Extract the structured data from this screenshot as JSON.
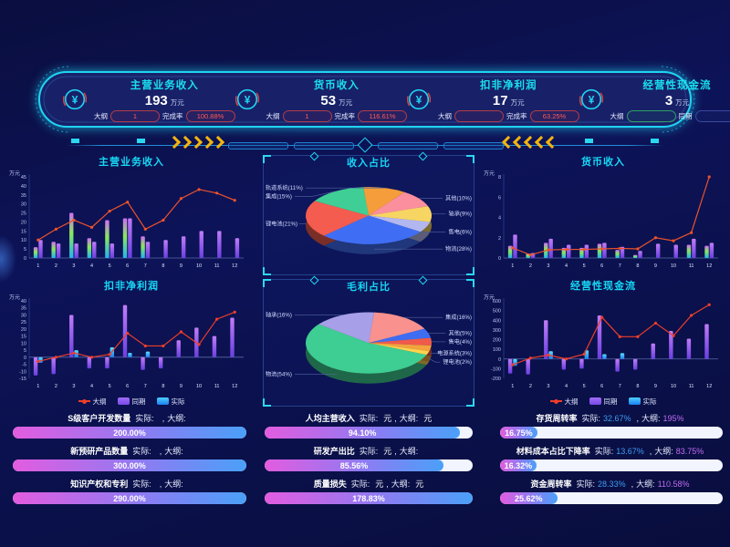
{
  "header": {
    "kpis": [
      {
        "title": "主营业务收入",
        "value": "193",
        "unit": "万元",
        "pills": [
          {
            "label": "大纲",
            "value": "1"
          },
          {
            "label": "完成率",
            "value": "100.88%"
          }
        ]
      },
      {
        "title": "货币收入",
        "value": "53",
        "unit": "万元",
        "pills": [
          {
            "label": "大纲",
            "value": "1"
          },
          {
            "label": "完成率",
            "value": "116.61%"
          }
        ]
      },
      {
        "title": "扣非净利润",
        "value": "17",
        "unit": "万元",
        "pills": [
          {
            "label": "大纲",
            "value": ""
          },
          {
            "label": "完成率",
            "value": "63.25%"
          }
        ]
      },
      {
        "title": "经营性现金流",
        "value": "3",
        "unit": "万元",
        "pills": [
          {
            "label": "大纲",
            "value": ""
          },
          {
            "label": "同期",
            "value": ""
          }
        ]
      }
    ]
  },
  "legend": {
    "items": [
      {
        "label": "大纲",
        "type": "line",
        "color": "#ee3e2a"
      },
      {
        "label": "同期",
        "type": "rect",
        "color": "#9257f0"
      },
      {
        "label": "实际",
        "type": "rect",
        "color": "#2aa8f0"
      }
    ]
  },
  "chart_data": [
    {
      "type": "combo",
      "title": "主营业务收入",
      "unit": "万元",
      "ylim": [
        0,
        45
      ],
      "ystep": 5,
      "categories": [
        "1",
        "2",
        "3",
        "4",
        "5",
        "6",
        "7",
        "8",
        "9",
        "10",
        "11",
        "12"
      ],
      "bars": [
        {
          "name": "实际",
          "palette": "rainbow",
          "values": [
            6,
            9,
            25,
            11,
            21,
            22,
            12,
            0,
            0,
            0,
            0,
            0
          ]
        },
        {
          "name": "同期",
          "palette": "purple",
          "values": [
            10,
            8,
            8,
            9,
            8,
            22,
            9,
            10,
            12,
            15,
            15,
            11
          ]
        }
      ],
      "line": {
        "name": "大纲",
        "color": "#ec522b",
        "values": [
          10,
          16,
          21,
          17,
          26,
          31,
          16,
          21,
          33,
          38,
          36,
          32
        ]
      }
    },
    {
      "type": "pie",
      "title": "收入占比",
      "start": -95,
      "slices": [
        {
          "label": "轨道系统",
          "pct": 11,
          "color": "#f49d3a",
          "side": "left"
        },
        {
          "label": "其他",
          "pct": 10,
          "color": "#fb8f9d",
          "side": "right"
        },
        {
          "label": "轴承",
          "pct": 9,
          "color": "#f7d562",
          "side": "right"
        },
        {
          "label": "售电",
          "pct": 6,
          "color": "#b3b7f0",
          "side": "right"
        },
        {
          "label": "物流",
          "pct": 28,
          "color": "#3f6ef5",
          "side": "right"
        },
        {
          "label": "锂电池",
          "pct": 21,
          "color": "#f35c4f",
          "side": "left"
        },
        {
          "label": "集成",
          "pct": 15,
          "color": "#3fcf96",
          "side": "left"
        }
      ]
    },
    {
      "type": "combo",
      "title": "货币收入",
      "unit": "万元",
      "ylim": [
        0,
        8
      ],
      "ystep": 2,
      "categories": [
        "1",
        "2",
        "3",
        "4",
        "5",
        "6",
        "7",
        "8",
        "9",
        "10",
        "11",
        "12"
      ],
      "bars": [
        {
          "name": "实际",
          "palette": "rainbow",
          "values": [
            1.2,
            0.45,
            1.5,
            1.0,
            1.0,
            1.4,
            0.8,
            0.3,
            0,
            0,
            1.3,
            1.2
          ]
        },
        {
          "name": "同期",
          "palette": "purple",
          "values": [
            2.3,
            0.5,
            1.9,
            1.3,
            1.3,
            1.5,
            1.1,
            0.7,
            1.4,
            1.3,
            1.9,
            1.5
          ]
        }
      ],
      "line": {
        "name": "大纲",
        "color": "#ec522b",
        "values": [
          1.0,
          0.3,
          0.8,
          0.85,
          0.85,
          0.9,
          0.95,
          0.9,
          2.0,
          1.7,
          2.5,
          8.0
        ]
      }
    },
    {
      "type": "combo",
      "title": "扣非净利润",
      "unit": "万元",
      "ylim": [
        -15,
        40
      ],
      "ystep": 5,
      "categories": [
        "1",
        "2",
        "3",
        "4",
        "5",
        "6",
        "7",
        "8",
        "9",
        "10",
        "11",
        "12"
      ],
      "bars": [
        {
          "name": "同期",
          "palette": "purple",
          "values": [
            -13,
            -12,
            30,
            -8,
            -8,
            37,
            -9,
            -8,
            12,
            21,
            15,
            28
          ]
        },
        {
          "name": "实际",
          "palette": "blue",
          "values": [
            -4,
            0,
            5,
            0,
            7,
            3,
            4,
            0,
            0,
            0,
            0,
            0
          ]
        }
      ],
      "line": {
        "name": "大纲",
        "color": "#ee3e2a",
        "values": [
          -3,
          0,
          3,
          0,
          2,
          17,
          8,
          8,
          18,
          9,
          27,
          32
        ]
      }
    },
    {
      "type": "pie",
      "title": "毛利占比",
      "start": -85,
      "slices": [
        {
          "label": "集成",
          "pct": 16,
          "color": "#f9918e",
          "side": "right"
        },
        {
          "label": "其他",
          "pct": 5,
          "color": "#3f6df2",
          "side": "right"
        },
        {
          "label": "售电",
          "pct": 4,
          "color": "#f05a4a",
          "side": "right"
        },
        {
          "label": "电源系统",
          "pct": 3,
          "color": "#f2a33c",
          "side": "right"
        },
        {
          "label": "锂电池",
          "pct": 2,
          "color": "#ffd34d",
          "side": "right"
        },
        {
          "label": "物流",
          "pct": 54,
          "color": "#3ecd92",
          "side": "left"
        },
        {
          "label": "轴承",
          "pct": 16,
          "color": "#a79fe8",
          "side": "left"
        }
      ]
    },
    {
      "type": "combo",
      "title": "经营性现金流",
      "unit": "万元",
      "ylim": [
        -200,
        600
      ],
      "ystep": 100,
      "categories": [
        "1",
        "2",
        "3",
        "4",
        "5",
        "6",
        "7",
        "8",
        "9",
        "10",
        "11",
        "12"
      ],
      "bars": [
        {
          "name": "同期",
          "palette": "purple",
          "values": [
            -150,
            -160,
            400,
            -110,
            -100,
            450,
            -130,
            -110,
            160,
            290,
            210,
            360
          ]
        },
        {
          "name": "实际",
          "palette": "blue",
          "values": [
            -70,
            0,
            80,
            0,
            90,
            50,
            60,
            0,
            0,
            0,
            0,
            0
          ]
        }
      ],
      "line": {
        "name": "大纲",
        "color": "#ee3e2a",
        "values": [
          -60,
          10,
          40,
          0,
          50,
          430,
          230,
          230,
          370,
          240,
          450,
          560
        ]
      }
    }
  ],
  "progress": {
    "columns": [
      {
        "rows": [
          {
            "title": "S级客户开发数量",
            "al": "实际:",
            "a": "",
            "au": "",
            "sep": ",",
            "tl": "大纲:",
            "t": "",
            "tu": "",
            "pct": "200.00%",
            "fill": 100
          },
          {
            "title": "新预研产品数量",
            "al": "实际:",
            "a": "",
            "au": "",
            "sep": ",",
            "tl": "大纲:",
            "t": "",
            "tu": "",
            "pct": "300.00%",
            "fill": 100
          },
          {
            "title": "知识产权和专利",
            "al": "实际:",
            "a": "",
            "au": "",
            "sep": ",",
            "tl": "大纲:",
            "t": "",
            "tu": "",
            "pct": "290.00%",
            "fill": 100
          }
        ]
      },
      {
        "rows": [
          {
            "title": "人均主营收入",
            "al": "实际:",
            "a": "",
            "au": "元",
            "sep": ",",
            "tl": "大纲:",
            "t": "",
            "tu": "元",
            "pct": "94.10%",
            "fill": 94
          },
          {
            "title": "研发产出比",
            "al": "实际:",
            "a": "",
            "au": "元",
            "sep": ",",
            "tl": "大纲:",
            "t": "",
            "tu": "",
            "pct": "85.56%",
            "fill": 86
          },
          {
            "title": "质量损失",
            "al": "实际:",
            "a": "",
            "au": "元",
            "sep": ",",
            "tl": "大纲:",
            "t": "",
            "tu": "元",
            "pct": "178.83%",
            "fill": 100
          }
        ]
      },
      {
        "rows": [
          {
            "title": "存货周转率",
            "al": "实际:",
            "a": "32.67%",
            "au": "",
            "sep": ",",
            "tl": "大纲:",
            "t": "195%",
            "tu": "",
            "pct": "16.75%",
            "fill": 16.75
          },
          {
            "title": "材料成本占比下降率",
            "al": "实际:",
            "a": "13.67%",
            "au": "",
            "sep": ",",
            "tl": "大纲:",
            "t": "83.75%",
            "tu": "",
            "pct": "16.32%",
            "fill": 16.32
          },
          {
            "title": "资金周转率",
            "al": "实际:",
            "a": "28.33%",
            "au": "",
            "sep": ",",
            "tl": "大纲:",
            "t": "110.58%",
            "tu": "",
            "pct": "25.62%",
            "fill": 25.62
          }
        ]
      }
    ]
  }
}
